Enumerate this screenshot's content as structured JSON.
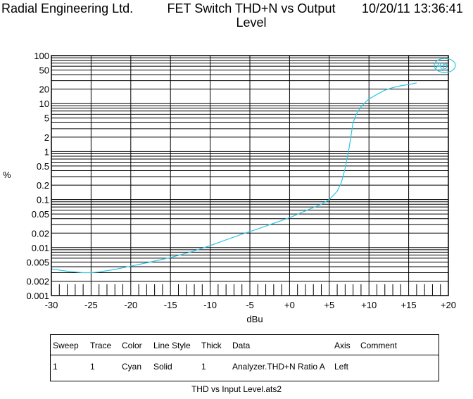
{
  "header": {
    "company": "Radial Engineering Ltd.",
    "title": "FET Switch THD+N vs Output Level",
    "date": "10/20/11 13:36:41"
  },
  "chart_data": {
    "type": "line",
    "title": "FET Switch THD+N vs Output Level",
    "xlabel": "dBu",
    "ylabel": "%",
    "xlim": [
      -30,
      20
    ],
    "ylim": [
      0.001,
      100
    ],
    "yscale": "log",
    "grid": true,
    "x_ticks": [
      -30,
      -25,
      -20,
      -15,
      -10,
      -5,
      0,
      5,
      10,
      15,
      20
    ],
    "x_tick_labels": [
      "-30",
      "-25",
      "-20",
      "-15",
      "-10",
      "-5",
      "+0",
      "+5",
      "+10",
      "+15",
      "+20"
    ],
    "y_ticks": [
      100,
      50,
      20,
      10,
      5,
      2,
      1,
      0.5,
      0.2,
      0.1,
      0.05,
      0.02,
      0.01,
      0.005,
      0.002,
      0.001
    ],
    "y_tick_labels": [
      "100",
      "50",
      "20",
      "10",
      "5",
      "2",
      "1",
      "0.5",
      "0.2",
      "0.1",
      "0.05",
      "0.02",
      "0.01",
      "0.005",
      "0.002",
      "0.001"
    ],
    "logo": "Ap",
    "series": [
      {
        "color": "#2ec8e6",
        "x": [
          -30,
          -28,
          -26,
          -25,
          -24,
          -22,
          -20,
          -18,
          -15,
          -12,
          -10,
          -8,
          -6,
          -4,
          -2,
          0,
          2,
          4,
          5,
          6,
          6.5,
          7,
          7.5,
          8,
          8.5,
          9,
          9.5,
          10,
          11,
          12,
          13,
          14,
          15,
          16
        ],
        "y": [
          0.0036,
          0.0032,
          0.003,
          0.003,
          0.0031,
          0.0035,
          0.0041,
          0.0048,
          0.0062,
          0.0085,
          0.011,
          0.0145,
          0.019,
          0.0245,
          0.032,
          0.042,
          0.058,
          0.08,
          0.1,
          0.15,
          0.22,
          0.45,
          1.2,
          4.0,
          6.5,
          8.5,
          10.5,
          12.5,
          15.5,
          19,
          21.5,
          23.5,
          25,
          27
        ]
      }
    ]
  },
  "legend_table": {
    "headers": [
      "Sweep",
      "Trace",
      "Color",
      "Line Style",
      "Thick",
      "Data",
      "Axis",
      "Comment"
    ],
    "rows": [
      [
        "1",
        "1",
        "Cyan",
        "Solid",
        "1",
        "Analyzer.THD+N Ratio A",
        "Left",
        ""
      ]
    ]
  },
  "footer": "THD vs Input Level.ats2"
}
